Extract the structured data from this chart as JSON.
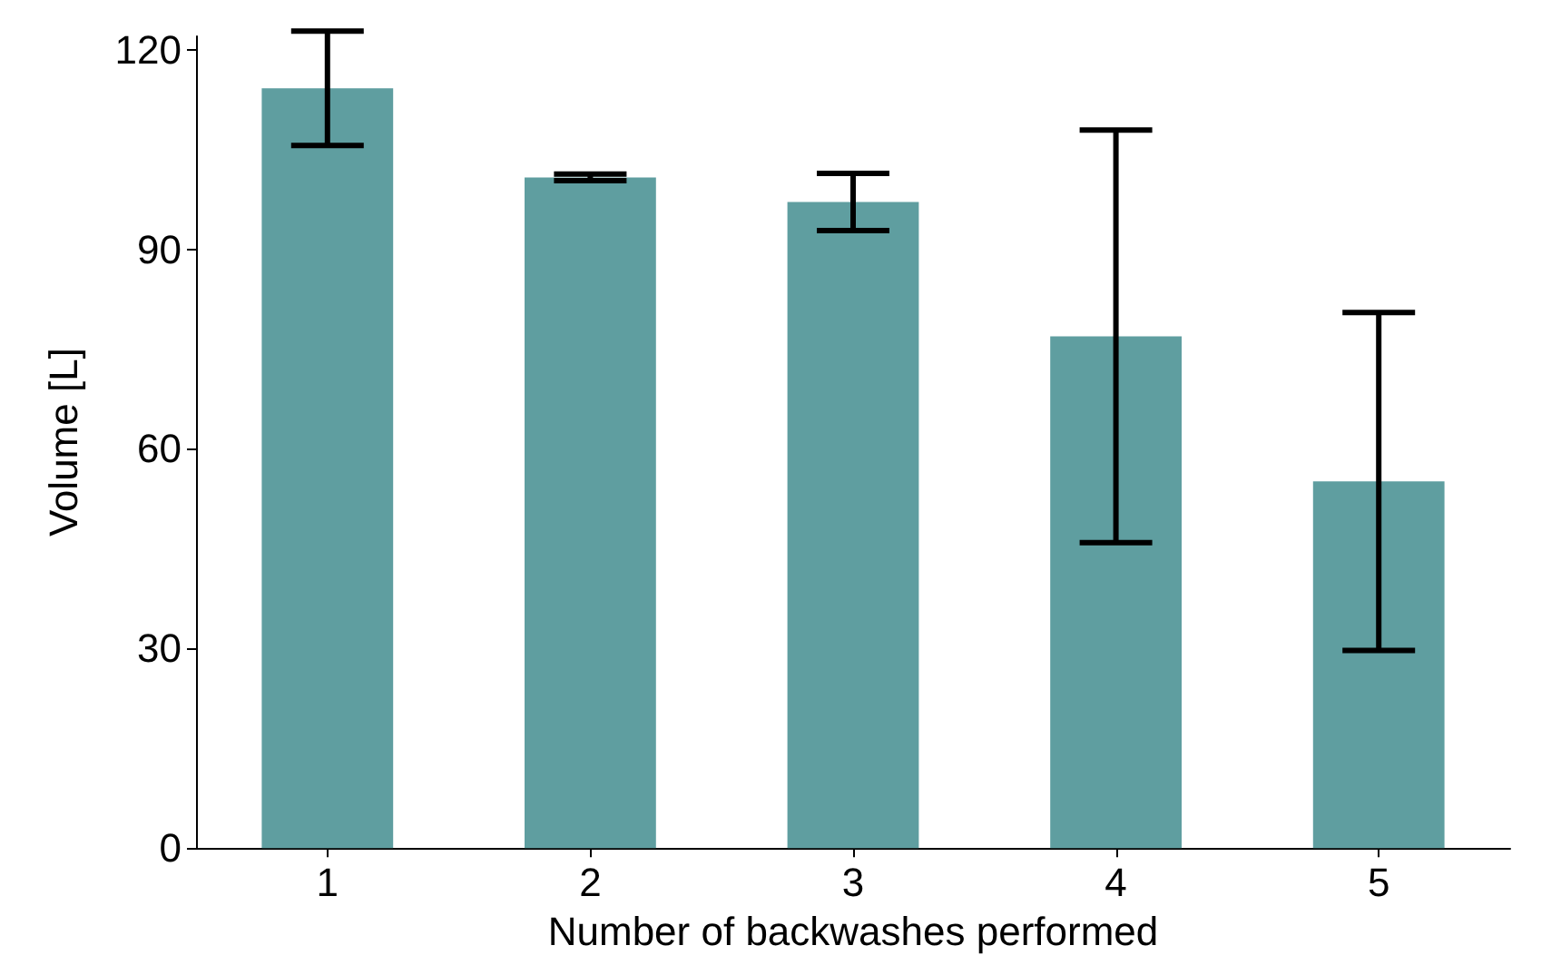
{
  "chart_data": {
    "type": "bar",
    "xlabel": "Number of backwashes performed",
    "ylabel": "Volume [L]",
    "categories": [
      "1",
      "2",
      "3",
      "4",
      "5"
    ],
    "values": [
      114.2,
      100.8,
      97.1,
      76.9,
      55.1
    ],
    "errors": [
      8.6,
      0.5,
      4.3,
      31,
      25.4
    ],
    "color": "#5f9ea0",
    "ylim": [
      0,
      122
    ],
    "yticks": [
      0,
      30,
      60,
      90,
      120
    ],
    "grid": false
  }
}
